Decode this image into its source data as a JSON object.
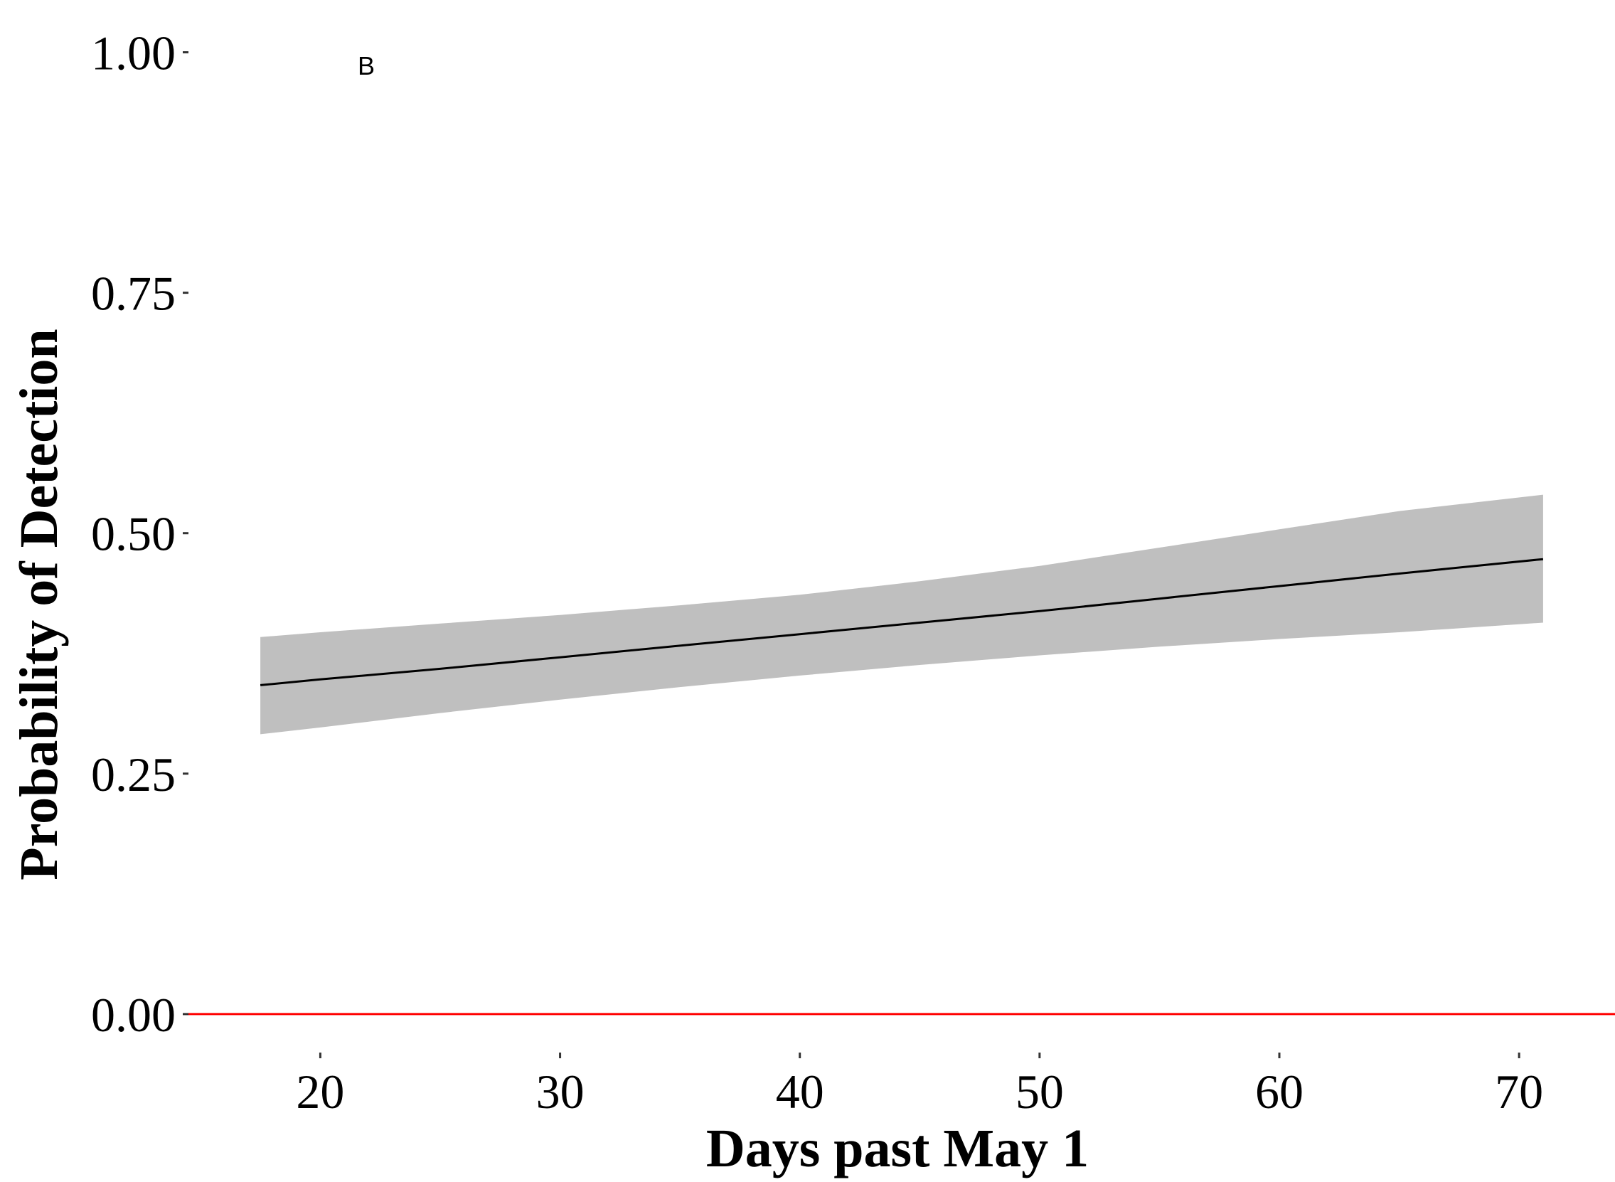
{
  "chart_data": {
    "type": "line",
    "panel_label": "B",
    "xlabel": "Days past May 1",
    "ylabel": "Probability of Detection",
    "xlim": [
      14.5,
      74
    ],
    "ylim": [
      -0.04,
      1.01
    ],
    "x_ticks": [
      20,
      30,
      40,
      50,
      60,
      70
    ],
    "x_tick_labels": [
      "20",
      "30",
      "40",
      "50",
      "60",
      "70"
    ],
    "y_ticks": [
      0,
      0.25,
      0.5,
      0.75,
      1
    ],
    "y_tick_labels": [
      "0.00",
      "0.25",
      "0.50",
      "0.75",
      "1.00"
    ],
    "grid": false,
    "legend": "none",
    "series": [
      {
        "x": [
          17.5,
          20,
          25,
          30,
          35,
          40,
          45,
          50,
          55,
          60,
          65,
          71
        ],
        "y": [
          0.342,
          0.348,
          0.359,
          0.371,
          0.383,
          0.395,
          0.407,
          0.419,
          0.432,
          0.445,
          0.458,
          0.473
        ],
        "lower": [
          0.291,
          0.298,
          0.313,
          0.327,
          0.34,
          0.352,
          0.363,
          0.373,
          0.382,
          0.39,
          0.397,
          0.407
        ],
        "upper": [
          0.392,
          0.397,
          0.406,
          0.415,
          0.425,
          0.436,
          0.45,
          0.466,
          0.485,
          0.504,
          0.523,
          0.54
        ]
      }
    ],
    "reference_line": {
      "y": 0.0
    },
    "colors": {
      "line": "#000000",
      "ribbon": "#bfbfbf",
      "reference": "#ff0000"
    }
  }
}
